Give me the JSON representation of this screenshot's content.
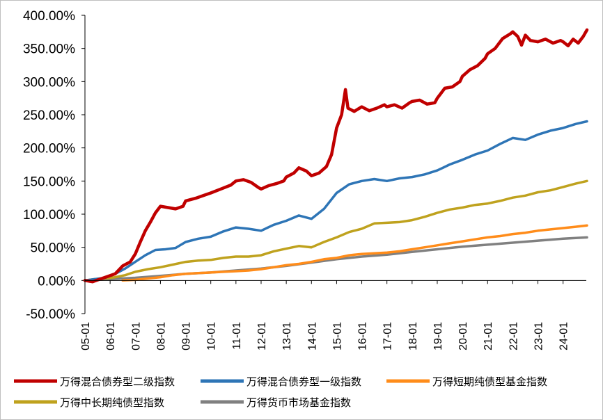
{
  "chart_data": {
    "type": "line",
    "title": "",
    "xlabel": "",
    "ylabel": "",
    "ylim": [
      -50,
      400
    ],
    "y_ticks": [
      "400.00%",
      "350.00%",
      "300.00%",
      "250.00%",
      "200.00%",
      "150.00%",
      "100.00%",
      "50.00%",
      "0.00%",
      "-50.00%"
    ],
    "y_tick_values": [
      400,
      350,
      300,
      250,
      200,
      150,
      100,
      50,
      0,
      -50
    ],
    "x_ticks": [
      "05-01",
      "06-01",
      "07-01",
      "08-01",
      "09-01",
      "10-01",
      "11-01",
      "12-01",
      "13-01",
      "14-01",
      "15-01",
      "16-01",
      "17-01",
      "18-01",
      "19-01",
      "20-01",
      "21-01",
      "22-01",
      "23-01",
      "24-01"
    ],
    "x_range": [
      2005.0,
      2024.95
    ],
    "grid": false,
    "legend_position": "bottom",
    "series": [
      {
        "name": "万得混合债券型二级指数",
        "color": "#c00000",
        "points": [
          [
            2005.0,
            0
          ],
          [
            2005.3,
            -2
          ],
          [
            2005.6,
            2
          ],
          [
            2005.9,
            6
          ],
          [
            2006.2,
            10
          ],
          [
            2006.5,
            22
          ],
          [
            2006.8,
            28
          ],
          [
            2007.0,
            40
          ],
          [
            2007.2,
            58
          ],
          [
            2007.4,
            75
          ],
          [
            2007.6,
            88
          ],
          [
            2007.8,
            102
          ],
          [
            2008.0,
            112
          ],
          [
            2008.3,
            110
          ],
          [
            2008.6,
            108
          ],
          [
            2008.9,
            112
          ],
          [
            2009.0,
            120
          ],
          [
            2009.4,
            124
          ],
          [
            2009.7,
            128
          ],
          [
            2010.0,
            132
          ],
          [
            2010.4,
            138
          ],
          [
            2010.8,
            144
          ],
          [
            2011.0,
            150
          ],
          [
            2011.3,
            152
          ],
          [
            2011.6,
            148
          ],
          [
            2011.9,
            140
          ],
          [
            2012.0,
            138
          ],
          [
            2012.3,
            143
          ],
          [
            2012.6,
            146
          ],
          [
            2012.9,
            150
          ],
          [
            2013.0,
            156
          ],
          [
            2013.3,
            162
          ],
          [
            2013.5,
            170
          ],
          [
            2013.8,
            165
          ],
          [
            2014.0,
            158
          ],
          [
            2014.3,
            162
          ],
          [
            2014.6,
            172
          ],
          [
            2014.8,
            190
          ],
          [
            2015.0,
            230
          ],
          [
            2015.2,
            250
          ],
          [
            2015.35,
            288
          ],
          [
            2015.45,
            260
          ],
          [
            2015.7,
            255
          ],
          [
            2016.0,
            262
          ],
          [
            2016.3,
            256
          ],
          [
            2016.6,
            260
          ],
          [
            2016.9,
            265
          ],
          [
            2017.0,
            262
          ],
          [
            2017.3,
            265
          ],
          [
            2017.6,
            260
          ],
          [
            2017.9,
            268
          ],
          [
            2018.0,
            270
          ],
          [
            2018.3,
            272
          ],
          [
            2018.6,
            266
          ],
          [
            2018.9,
            268
          ],
          [
            2019.0,
            275
          ],
          [
            2019.3,
            290
          ],
          [
            2019.6,
            292
          ],
          [
            2019.9,
            300
          ],
          [
            2020.0,
            308
          ],
          [
            2020.3,
            318
          ],
          [
            2020.6,
            324
          ],
          [
            2020.9,
            335
          ],
          [
            2021.0,
            342
          ],
          [
            2021.3,
            350
          ],
          [
            2021.6,
            365
          ],
          [
            2021.9,
            372
          ],
          [
            2022.0,
            375
          ],
          [
            2022.2,
            368
          ],
          [
            2022.35,
            355
          ],
          [
            2022.5,
            370
          ],
          [
            2022.7,
            362
          ],
          [
            2023.0,
            360
          ],
          [
            2023.3,
            364
          ],
          [
            2023.6,
            358
          ],
          [
            2023.9,
            362
          ],
          [
            2024.0,
            360
          ],
          [
            2024.2,
            354
          ],
          [
            2024.4,
            364
          ],
          [
            2024.6,
            358
          ],
          [
            2024.8,
            368
          ],
          [
            2024.95,
            378
          ]
        ]
      },
      {
        "name": "万得混合债券型一级指数",
        "color": "#2e75b6",
        "points": [
          [
            2005.0,
            0
          ],
          [
            2005.4,
            2
          ],
          [
            2005.8,
            4
          ],
          [
            2006.2,
            10
          ],
          [
            2006.6,
            18
          ],
          [
            2007.0,
            28
          ],
          [
            2007.4,
            38
          ],
          [
            2007.8,
            46
          ],
          [
            2008.2,
            47
          ],
          [
            2008.6,
            49
          ],
          [
            2009.0,
            58
          ],
          [
            2009.5,
            63
          ],
          [
            2010.0,
            66
          ],
          [
            2010.5,
            74
          ],
          [
            2011.0,
            80
          ],
          [
            2011.5,
            78
          ],
          [
            2012.0,
            75
          ],
          [
            2012.5,
            84
          ],
          [
            2013.0,
            90
          ],
          [
            2013.5,
            98
          ],
          [
            2014.0,
            93
          ],
          [
            2014.5,
            108
          ],
          [
            2015.0,
            132
          ],
          [
            2015.5,
            145
          ],
          [
            2016.0,
            150
          ],
          [
            2016.5,
            153
          ],
          [
            2017.0,
            150
          ],
          [
            2017.5,
            154
          ],
          [
            2018.0,
            156
          ],
          [
            2018.5,
            160
          ],
          [
            2019.0,
            166
          ],
          [
            2019.5,
            175
          ],
          [
            2020.0,
            182
          ],
          [
            2020.5,
            190
          ],
          [
            2021.0,
            196
          ],
          [
            2021.5,
            206
          ],
          [
            2022.0,
            215
          ],
          [
            2022.5,
            212
          ],
          [
            2023.0,
            220
          ],
          [
            2023.5,
            226
          ],
          [
            2024.0,
            230
          ],
          [
            2024.5,
            236
          ],
          [
            2024.95,
            240
          ]
        ]
      },
      {
        "name": "万得短期纯债型基金指数",
        "color": "#ff8c1a",
        "points": [
          [
            2006.5,
            0
          ],
          [
            2007.0,
            1
          ],
          [
            2007.5,
            3
          ],
          [
            2008.0,
            5
          ],
          [
            2008.5,
            8
          ],
          [
            2009.0,
            10
          ],
          [
            2009.5,
            11
          ],
          [
            2010.0,
            12
          ],
          [
            2010.5,
            13
          ],
          [
            2011.0,
            14
          ],
          [
            2011.5,
            15
          ],
          [
            2012.0,
            17
          ],
          [
            2012.5,
            20
          ],
          [
            2013.0,
            23
          ],
          [
            2013.5,
            25
          ],
          [
            2014.0,
            28
          ],
          [
            2014.5,
            32
          ],
          [
            2015.0,
            34
          ],
          [
            2015.5,
            38
          ],
          [
            2016.0,
            40
          ],
          [
            2016.5,
            41
          ],
          [
            2017.0,
            42
          ],
          [
            2017.5,
            44
          ],
          [
            2018.0,
            47
          ],
          [
            2018.5,
            50
          ],
          [
            2019.0,
            53
          ],
          [
            2019.5,
            56
          ],
          [
            2020.0,
            59
          ],
          [
            2020.5,
            62
          ],
          [
            2021.0,
            65
          ],
          [
            2021.5,
            67
          ],
          [
            2022.0,
            70
          ],
          [
            2022.5,
            72
          ],
          [
            2023.0,
            75
          ],
          [
            2023.5,
            77
          ],
          [
            2024.0,
            79
          ],
          [
            2024.5,
            81
          ],
          [
            2024.95,
            83
          ]
        ]
      },
      {
        "name": "万得中长期纯债型指数",
        "color": "#bfa21e",
        "points": [
          [
            2005.0,
            0
          ],
          [
            2005.4,
            2
          ],
          [
            2005.8,
            3
          ],
          [
            2006.2,
            5
          ],
          [
            2006.6,
            8
          ],
          [
            2007.0,
            13
          ],
          [
            2007.5,
            17
          ],
          [
            2008.0,
            20
          ],
          [
            2008.5,
            24
          ],
          [
            2009.0,
            28
          ],
          [
            2009.5,
            30
          ],
          [
            2010.0,
            31
          ],
          [
            2010.5,
            34
          ],
          [
            2011.0,
            36
          ],
          [
            2011.5,
            36
          ],
          [
            2012.0,
            38
          ],
          [
            2012.5,
            44
          ],
          [
            2013.0,
            48
          ],
          [
            2013.5,
            52
          ],
          [
            2014.0,
            50
          ],
          [
            2014.5,
            58
          ],
          [
            2015.0,
            65
          ],
          [
            2015.5,
            73
          ],
          [
            2016.0,
            78
          ],
          [
            2016.5,
            86
          ],
          [
            2017.0,
            87
          ],
          [
            2017.5,
            88
          ],
          [
            2018.0,
            91
          ],
          [
            2018.5,
            96
          ],
          [
            2019.0,
            102
          ],
          [
            2019.5,
            107
          ],
          [
            2020.0,
            110
          ],
          [
            2020.5,
            114
          ],
          [
            2021.0,
            116
          ],
          [
            2021.5,
            120
          ],
          [
            2022.0,
            125
          ],
          [
            2022.5,
            128
          ],
          [
            2023.0,
            133
          ],
          [
            2023.5,
            136
          ],
          [
            2024.0,
            141
          ],
          [
            2024.5,
            146
          ],
          [
            2024.95,
            150
          ]
        ]
      },
      {
        "name": "万得货币市场基金指数",
        "color": "#808080",
        "points": [
          [
            2005.0,
            0
          ],
          [
            2006.0,
            2
          ],
          [
            2007.0,
            4
          ],
          [
            2008.0,
            7
          ],
          [
            2009.0,
            10
          ],
          [
            2010.0,
            12
          ],
          [
            2011.0,
            15
          ],
          [
            2012.0,
            18
          ],
          [
            2013.0,
            22
          ],
          [
            2014.0,
            27
          ],
          [
            2015.0,
            32
          ],
          [
            2016.0,
            36
          ],
          [
            2017.0,
            39
          ],
          [
            2018.0,
            43
          ],
          [
            2019.0,
            47
          ],
          [
            2020.0,
            51
          ],
          [
            2021.0,
            54
          ],
          [
            2022.0,
            57
          ],
          [
            2023.0,
            60
          ],
          [
            2024.0,
            63
          ],
          [
            2024.95,
            65
          ]
        ]
      }
    ]
  }
}
